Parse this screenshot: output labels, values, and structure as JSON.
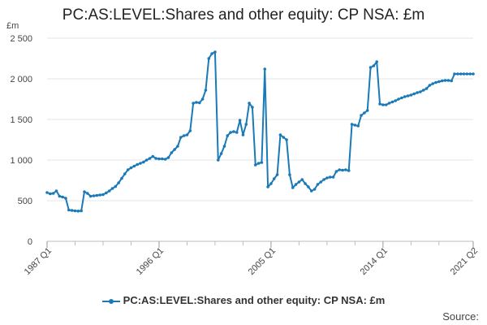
{
  "chart_data": {
    "type": "line",
    "title": "PC:AS:LEVEL:Shares and other equity: CP NSA: £m",
    "ylabel": "£m",
    "xlabel": "",
    "ylim": [
      0,
      2500
    ],
    "y_ticks": [
      0,
      500,
      1000,
      1500,
      2000,
      2500
    ],
    "y_tick_labels": [
      "0",
      "500",
      "1 000",
      "1 500",
      "2 000",
      "2 500"
    ],
    "x_tick_labels": [
      "1987 Q1",
      "1996 Q1",
      "2005 Q1",
      "2014 Q1",
      "2021 Q2"
    ],
    "x_tick_positions": [
      0,
      36,
      72,
      108,
      137
    ],
    "x_minor_ticks": [
      9,
      18,
      27,
      45,
      54,
      63,
      81,
      90,
      99,
      117,
      126
    ],
    "grid": true,
    "legend": "bottom",
    "color": "#1a7ab8",
    "series": [
      {
        "name": "PC:AS:LEVEL:Shares and other equity: CP NSA: £m",
        "x_start": "1987 Q1",
        "x_end": "2021 Q2",
        "values": [
          600,
          585,
          590,
          620,
          555,
          545,
          530,
          385,
          380,
          375,
          372,
          375,
          610,
          590,
          555,
          560,
          565,
          570,
          575,
          595,
          620,
          650,
          675,
          720,
          775,
          830,
          880,
          905,
          925,
          945,
          960,
          975,
          1000,
          1020,
          1045,
          1020,
          1015,
          1015,
          1010,
          1030,
          1090,
          1130,
          1170,
          1280,
          1300,
          1310,
          1360,
          1700,
          1710,
          1705,
          1750,
          1860,
          2250,
          2310,
          2330,
          1000,
          1080,
          1170,
          1300,
          1340,
          1350,
          1340,
          1490,
          1310,
          1440,
          1700,
          1650,
          940,
          960,
          970,
          2120,
          670,
          710,
          770,
          820,
          1310,
          1280,
          1250,
          820,
          660,
          700,
          730,
          760,
          710,
          670,
          620,
          640,
          700,
          730,
          760,
          780,
          790,
          790,
          860,
          880,
          875,
          880,
          870,
          1440,
          1430,
          1420,
          1550,
          1580,
          1610,
          2140,
          2160,
          2210,
          1690,
          1680,
          1680,
          1700,
          1715,
          1730,
          1750,
          1765,
          1780,
          1790,
          1800,
          1815,
          1830,
          1840,
          1860,
          1880,
          1920,
          1940,
          1955,
          1965,
          1975,
          1980,
          1980,
          1975,
          2060,
          2060,
          2060,
          2060,
          2060,
          2060,
          2060
        ]
      }
    ]
  },
  "legend": {
    "label": "PC:AS:LEVEL:Shares and other equity: CP NSA: £m"
  },
  "source": {
    "label": "Source:"
  }
}
